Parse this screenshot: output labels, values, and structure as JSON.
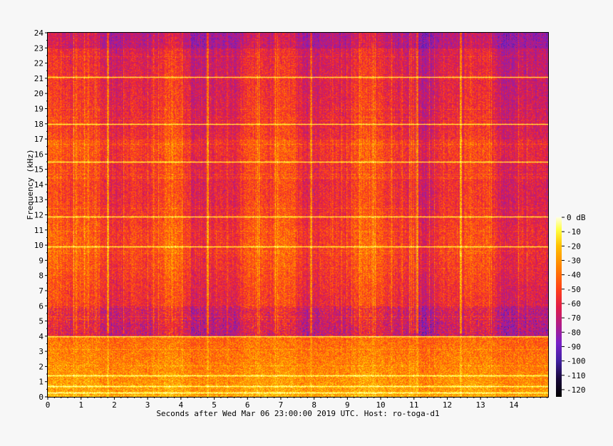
{
  "chart_data": {
    "type": "heatmap",
    "xlabel": "Seconds after Wed Mar 06 23:00:00 2019 UTC. Host: ro-toga-d1",
    "ylabel": "Frequency (kHz)",
    "xlim": [
      0,
      15
    ],
    "ylim": [
      0,
      24
    ],
    "x_ticks": [
      0,
      1,
      2,
      3,
      4,
      5,
      6,
      7,
      8,
      9,
      10,
      11,
      12,
      13,
      14
    ],
    "y_ticks": [
      0,
      1,
      2,
      3,
      4,
      5,
      6,
      7,
      8,
      9,
      10,
      11,
      12,
      13,
      14,
      15,
      16,
      17,
      18,
      19,
      20,
      21,
      22,
      23,
      24
    ],
    "colorbar": {
      "unit": "dB",
      "range": [
        -125,
        0
      ],
      "ticks": [
        "0 dB",
        "-10",
        "-20",
        "-30",
        "-40",
        "-50",
        "-60",
        "-70",
        "-80",
        "-90",
        "-100",
        "-110",
        "-120"
      ],
      "tick_values": [
        0,
        -10,
        -20,
        -30,
        -40,
        -50,
        -60,
        -70,
        -80,
        -90,
        -100,
        -110,
        -120
      ]
    },
    "colormap": [
      "#ffffe0",
      "#ffff40",
      "#ffc000",
      "#ff8000",
      "#ff4018",
      "#e01c48",
      "#b01c88",
      "#7820c8",
      "#4020a0",
      "#180838",
      "#000000"
    ],
    "tonal_lines_khz": [
      {
        "freq": 4.0,
        "level": -8
      },
      {
        "freq": 11.9,
        "level": -25
      },
      {
        "freq": 15.5,
        "level": -30
      },
      {
        "freq": 18.0,
        "level": -25
      },
      {
        "freq": 21.1,
        "level": -30
      },
      {
        "freq": 9.9,
        "level": -35
      },
      {
        "freq": 0.3,
        "level": -20
      },
      {
        "freq": 0.7,
        "level": -25
      },
      {
        "freq": 1.4,
        "level": -30
      }
    ],
    "transients_s": [
      {
        "t": 1.8,
        "level": -20
      },
      {
        "t": 4.8,
        "level": -15
      },
      {
        "t": 7.9,
        "level": -15
      },
      {
        "t": 11.1,
        "level": -30
      },
      {
        "t": 12.4,
        "level": -30
      }
    ]
  }
}
